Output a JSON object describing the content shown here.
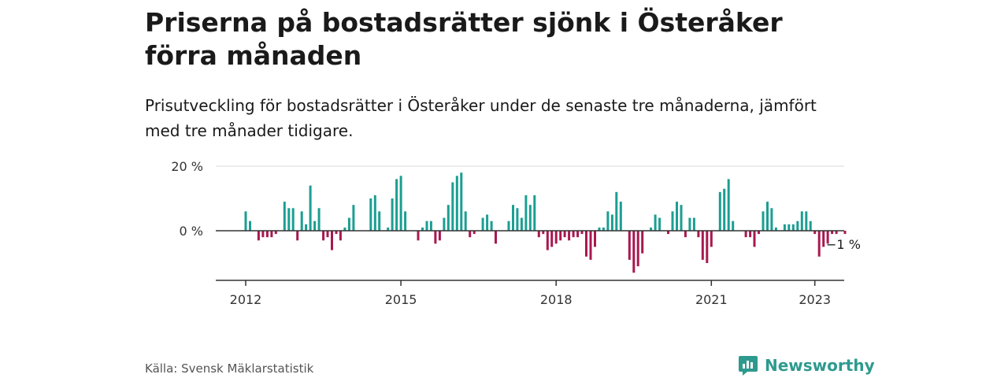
{
  "header": {
    "title": "Priserna på bostadsrätter sjönk i Österåker förra månaden",
    "subtitle": "Prisutveckling för bostadsrätter i Österåker under de senaste tre månaderna, jämfört med tre månader tidigare."
  },
  "footer": {
    "source": "Källa: Svensk Mäklarstatistik",
    "brand": "Newsworthy"
  },
  "colors": {
    "positive": "#1b9e92",
    "negative": "#a8184f",
    "axis": "#333333",
    "grid": "#d8d8d8"
  },
  "chart_data": {
    "type": "bar",
    "x_unit": "month",
    "x_start": "2012-01",
    "ylim": [
      -16,
      20
    ],
    "y_ticks": [
      0,
      20
    ],
    "y_tick_labels": [
      "0 %",
      "20 %"
    ],
    "x_ticks": [
      "2012",
      "2015",
      "2018",
      "2021",
      "2023"
    ],
    "annotation": "−1 %",
    "values": [
      6,
      3,
      0,
      -3,
      -2,
      -2,
      -2,
      -1,
      0,
      9,
      7,
      7,
      -3,
      6,
      2,
      14,
      3,
      7,
      -3,
      -2,
      -6,
      -1,
      -3,
      1,
      4,
      8,
      0,
      0,
      0,
      10,
      11,
      6,
      0,
      1,
      10,
      16,
      17,
      6,
      0,
      0,
      -3,
      1,
      3,
      3,
      -4,
      -3,
      4,
      8,
      15,
      17,
      18,
      6,
      -2,
      -1,
      0,
      4,
      5,
      3,
      -4,
      0,
      0,
      3,
      8,
      7,
      4,
      11,
      8,
      11,
      -2,
      -1,
      -6,
      -5,
      -4,
      -3,
      -2,
      -3,
      -2,
      -2,
      -1,
      -8,
      -9,
      -5,
      1,
      1,
      6,
      5,
      12,
      9,
      0,
      -9,
      -13,
      -11,
      -7,
      0,
      1,
      5,
      4,
      0,
      -1,
      6,
      9,
      8,
      -2,
      4,
      4,
      -2,
      -9,
      -10,
      -5,
      0,
      12,
      13,
      16,
      3,
      0,
      0,
      -2,
      -2,
      -5,
      -1,
      6,
      9,
      7,
      1,
      0,
      2,
      2,
      2,
      3,
      6,
      6,
      3,
      -1,
      -8,
      -5,
      -4,
      -1,
      -1,
      0,
      -1
    ]
  }
}
